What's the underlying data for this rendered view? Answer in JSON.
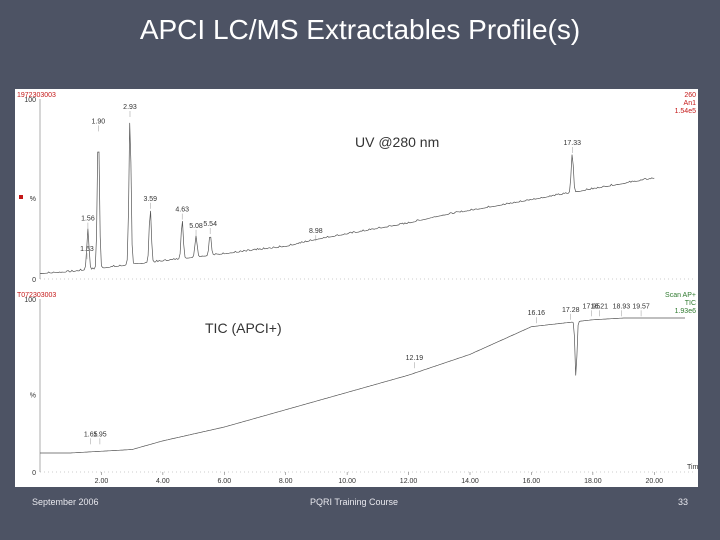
{
  "slide": {
    "title": "APCI LC/MS Extractables Profile(s)",
    "footer_left": "September 2006",
    "footer_center": "PQRI Training Course",
    "page_number": "33"
  },
  "colors": {
    "background": "#4d5364",
    "trace": "#555555",
    "uv_header": "#c41818",
    "tic_header": "#2f7a2f"
  },
  "chart_data": [
    {
      "type": "line",
      "annotation": "UV @280 nm",
      "header_left": "1972303003",
      "header_right": [
        "260",
        "An1",
        "1.54e5"
      ],
      "y_tick_labels": [
        "100",
        "%",
        "0"
      ],
      "xlim": [
        0,
        21
      ],
      "ylim": [
        0,
        100
      ],
      "baseline": [
        [
          0.0,
          3
        ],
        [
          1.0,
          4
        ],
        [
          2.0,
          6
        ],
        [
          3.0,
          8
        ],
        [
          4.0,
          10
        ],
        [
          5.0,
          12
        ],
        [
          6.0,
          14
        ],
        [
          7.0,
          16
        ],
        [
          8.0,
          18
        ],
        [
          9.0,
          22
        ],
        [
          10.0,
          25
        ],
        [
          11.0,
          28
        ],
        [
          12.0,
          31
        ],
        [
          13.0,
          35
        ],
        [
          14.0,
          38
        ],
        [
          15.0,
          41
        ],
        [
          16.0,
          44
        ],
        [
          17.0,
          47
        ],
        [
          18.0,
          50
        ],
        [
          19.0,
          53
        ],
        [
          20.0,
          56
        ]
      ],
      "peaks": [
        {
          "rt": 1.53,
          "label": "1.53",
          "height": 11
        },
        {
          "rt": 1.56,
          "label": "1.56",
          "height": 28
        },
        {
          "rt": 1.9,
          "label": "1.90",
          "height": 82
        },
        {
          "rt": 2.93,
          "label": "2.93",
          "height": 90
        },
        {
          "rt": 3.59,
          "label": "3.59",
          "height": 39
        },
        {
          "rt": 4.63,
          "label": "4.63",
          "height": 33
        },
        {
          "rt": 5.08,
          "label": "5.08",
          "height": 24
        },
        {
          "rt": 5.54,
          "label": "5.54",
          "height": 25
        },
        {
          "rt": 8.98,
          "label": "8.98",
          "height": 21
        },
        {
          "rt": 17.33,
          "label": "17.33",
          "height": 70
        }
      ]
    },
    {
      "type": "line",
      "annotation": "TIC (APCI+)",
      "header_left": "T072303003",
      "header_right": [
        "Scan AP+",
        "TIC",
        "1.93e6"
      ],
      "y_tick_labels": [
        "100",
        "%",
        "0"
      ],
      "xlabel": "Time",
      "xlim": [
        0,
        21
      ],
      "ylim": [
        0,
        100
      ],
      "x_ticks": [
        {
          "value": 2,
          "label": "2.00"
        },
        {
          "value": 4,
          "label": "4.00"
        },
        {
          "value": 6,
          "label": "6.00"
        },
        {
          "value": 8,
          "label": "8.00"
        },
        {
          "value": 10,
          "label": "10.00"
        },
        {
          "value": 12,
          "label": "12.00"
        },
        {
          "value": 14,
          "label": "14.00"
        },
        {
          "value": 16,
          "label": "16.00"
        },
        {
          "value": 18,
          "label": "18.00"
        },
        {
          "value": 20,
          "label": "20.00"
        }
      ],
      "baseline": [
        [
          0.0,
          11
        ],
        [
          1.0,
          11
        ],
        [
          2.0,
          12
        ],
        [
          3.0,
          13
        ],
        [
          4.0,
          18
        ],
        [
          5.0,
          22
        ],
        [
          6.0,
          26
        ],
        [
          7.0,
          31
        ],
        [
          8.0,
          36
        ],
        [
          9.0,
          41
        ],
        [
          10.0,
          46
        ],
        [
          11.0,
          51
        ],
        [
          12.0,
          56
        ],
        [
          13.0,
          62
        ],
        [
          14.0,
          68
        ],
        [
          15.0,
          76
        ],
        [
          16.0,
          84
        ],
        [
          17.0,
          86
        ],
        [
          18.0,
          88
        ],
        [
          19.0,
          89
        ],
        [
          20.0,
          89
        ],
        [
          21.0,
          89
        ]
      ],
      "peaks": [
        {
          "rt": 1.65,
          "label": "1.65",
          "height": 16
        },
        {
          "rt": 1.95,
          "label": "1.95",
          "height": 16
        },
        {
          "rt": 12.19,
          "label": "12.19",
          "height": 60
        },
        {
          "rt": 16.16,
          "label": "16.16",
          "height": 86
        },
        {
          "rt": 17.28,
          "label": "17.28",
          "height": 88
        },
        {
          "rt": 17.95,
          "label": "17.95",
          "height": 90
        },
        {
          "rt": 18.21,
          "label": "18.21",
          "height": 90
        },
        {
          "rt": 18.93,
          "label": "18.93",
          "height": 90
        },
        {
          "rt": 19.57,
          "label": "19.57",
          "height": 90
        }
      ],
      "dips": [
        {
          "rt": 17.45,
          "height": 54
        }
      ]
    }
  ]
}
